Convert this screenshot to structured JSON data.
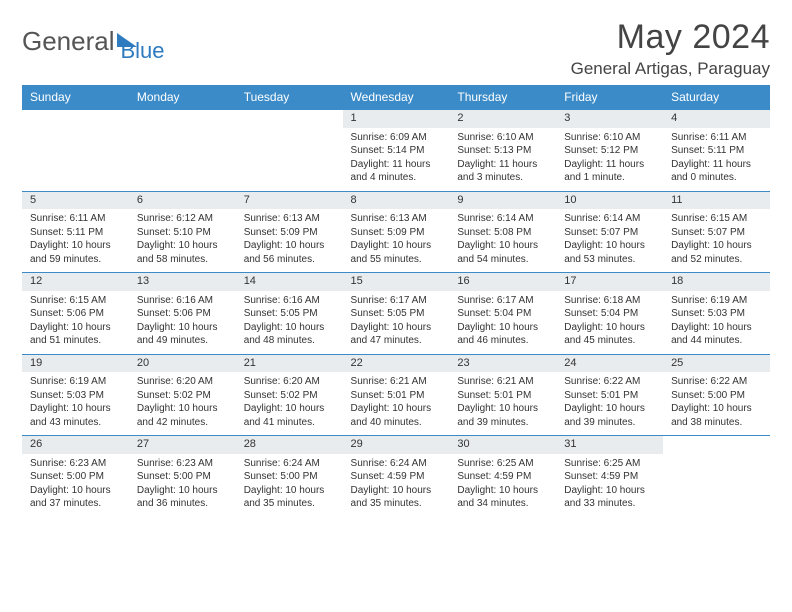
{
  "brand": {
    "part1": "General",
    "part2": "Blue"
  },
  "title": "May 2024",
  "location": "General Artigas, Paraguay",
  "colors": {
    "header_bg": "#3b8bc9",
    "header_text": "#ffffff",
    "daynum_bg": "#e9ecef",
    "border": "#3b8bc9",
    "brand_gray": "#555555",
    "brand_blue": "#2e7bbf"
  },
  "typography": {
    "title_fontsize": 34,
    "location_fontsize": 17,
    "header_fontsize": 12,
    "cell_fontsize": 10
  },
  "weekdays": [
    "Sunday",
    "Monday",
    "Tuesday",
    "Wednesday",
    "Thursday",
    "Friday",
    "Saturday"
  ],
  "weeks": [
    [
      null,
      null,
      null,
      {
        "n": "1",
        "sr": "Sunrise: 6:09 AM",
        "ss": "Sunset: 5:14 PM",
        "dl": "Daylight: 11 hours and 4 minutes."
      },
      {
        "n": "2",
        "sr": "Sunrise: 6:10 AM",
        "ss": "Sunset: 5:13 PM",
        "dl": "Daylight: 11 hours and 3 minutes."
      },
      {
        "n": "3",
        "sr": "Sunrise: 6:10 AM",
        "ss": "Sunset: 5:12 PM",
        "dl": "Daylight: 11 hours and 1 minute."
      },
      {
        "n": "4",
        "sr": "Sunrise: 6:11 AM",
        "ss": "Sunset: 5:11 PM",
        "dl": "Daylight: 11 hours and 0 minutes."
      }
    ],
    [
      {
        "n": "5",
        "sr": "Sunrise: 6:11 AM",
        "ss": "Sunset: 5:11 PM",
        "dl": "Daylight: 10 hours and 59 minutes."
      },
      {
        "n": "6",
        "sr": "Sunrise: 6:12 AM",
        "ss": "Sunset: 5:10 PM",
        "dl": "Daylight: 10 hours and 58 minutes."
      },
      {
        "n": "7",
        "sr": "Sunrise: 6:13 AM",
        "ss": "Sunset: 5:09 PM",
        "dl": "Daylight: 10 hours and 56 minutes."
      },
      {
        "n": "8",
        "sr": "Sunrise: 6:13 AM",
        "ss": "Sunset: 5:09 PM",
        "dl": "Daylight: 10 hours and 55 minutes."
      },
      {
        "n": "9",
        "sr": "Sunrise: 6:14 AM",
        "ss": "Sunset: 5:08 PM",
        "dl": "Daylight: 10 hours and 54 minutes."
      },
      {
        "n": "10",
        "sr": "Sunrise: 6:14 AM",
        "ss": "Sunset: 5:07 PM",
        "dl": "Daylight: 10 hours and 53 minutes."
      },
      {
        "n": "11",
        "sr": "Sunrise: 6:15 AM",
        "ss": "Sunset: 5:07 PM",
        "dl": "Daylight: 10 hours and 52 minutes."
      }
    ],
    [
      {
        "n": "12",
        "sr": "Sunrise: 6:15 AM",
        "ss": "Sunset: 5:06 PM",
        "dl": "Daylight: 10 hours and 51 minutes."
      },
      {
        "n": "13",
        "sr": "Sunrise: 6:16 AM",
        "ss": "Sunset: 5:06 PM",
        "dl": "Daylight: 10 hours and 49 minutes."
      },
      {
        "n": "14",
        "sr": "Sunrise: 6:16 AM",
        "ss": "Sunset: 5:05 PM",
        "dl": "Daylight: 10 hours and 48 minutes."
      },
      {
        "n": "15",
        "sr": "Sunrise: 6:17 AM",
        "ss": "Sunset: 5:05 PM",
        "dl": "Daylight: 10 hours and 47 minutes."
      },
      {
        "n": "16",
        "sr": "Sunrise: 6:17 AM",
        "ss": "Sunset: 5:04 PM",
        "dl": "Daylight: 10 hours and 46 minutes."
      },
      {
        "n": "17",
        "sr": "Sunrise: 6:18 AM",
        "ss": "Sunset: 5:04 PM",
        "dl": "Daylight: 10 hours and 45 minutes."
      },
      {
        "n": "18",
        "sr": "Sunrise: 6:19 AM",
        "ss": "Sunset: 5:03 PM",
        "dl": "Daylight: 10 hours and 44 minutes."
      }
    ],
    [
      {
        "n": "19",
        "sr": "Sunrise: 6:19 AM",
        "ss": "Sunset: 5:03 PM",
        "dl": "Daylight: 10 hours and 43 minutes."
      },
      {
        "n": "20",
        "sr": "Sunrise: 6:20 AM",
        "ss": "Sunset: 5:02 PM",
        "dl": "Daylight: 10 hours and 42 minutes."
      },
      {
        "n": "21",
        "sr": "Sunrise: 6:20 AM",
        "ss": "Sunset: 5:02 PM",
        "dl": "Daylight: 10 hours and 41 minutes."
      },
      {
        "n": "22",
        "sr": "Sunrise: 6:21 AM",
        "ss": "Sunset: 5:01 PM",
        "dl": "Daylight: 10 hours and 40 minutes."
      },
      {
        "n": "23",
        "sr": "Sunrise: 6:21 AM",
        "ss": "Sunset: 5:01 PM",
        "dl": "Daylight: 10 hours and 39 minutes."
      },
      {
        "n": "24",
        "sr": "Sunrise: 6:22 AM",
        "ss": "Sunset: 5:01 PM",
        "dl": "Daylight: 10 hours and 39 minutes."
      },
      {
        "n": "25",
        "sr": "Sunrise: 6:22 AM",
        "ss": "Sunset: 5:00 PM",
        "dl": "Daylight: 10 hours and 38 minutes."
      }
    ],
    [
      {
        "n": "26",
        "sr": "Sunrise: 6:23 AM",
        "ss": "Sunset: 5:00 PM",
        "dl": "Daylight: 10 hours and 37 minutes."
      },
      {
        "n": "27",
        "sr": "Sunrise: 6:23 AM",
        "ss": "Sunset: 5:00 PM",
        "dl": "Daylight: 10 hours and 36 minutes."
      },
      {
        "n": "28",
        "sr": "Sunrise: 6:24 AM",
        "ss": "Sunset: 5:00 PM",
        "dl": "Daylight: 10 hours and 35 minutes."
      },
      {
        "n": "29",
        "sr": "Sunrise: 6:24 AM",
        "ss": "Sunset: 4:59 PM",
        "dl": "Daylight: 10 hours and 35 minutes."
      },
      {
        "n": "30",
        "sr": "Sunrise: 6:25 AM",
        "ss": "Sunset: 4:59 PM",
        "dl": "Daylight: 10 hours and 34 minutes."
      },
      {
        "n": "31",
        "sr": "Sunrise: 6:25 AM",
        "ss": "Sunset: 4:59 PM",
        "dl": "Daylight: 10 hours and 33 minutes."
      },
      null
    ]
  ]
}
